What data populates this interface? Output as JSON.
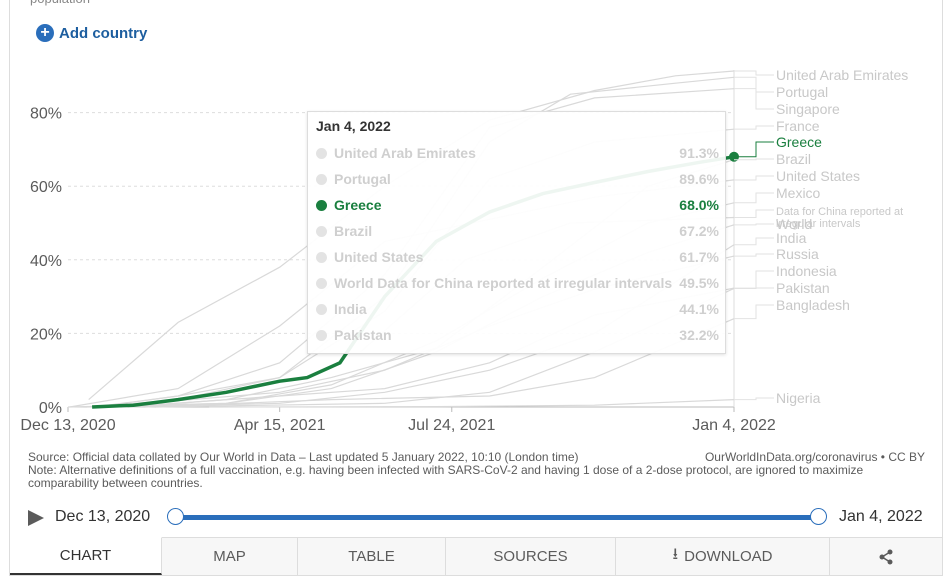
{
  "header": {
    "add_country_label": "Add country",
    "cut_text": "population"
  },
  "chart_data": {
    "type": "line",
    "y_ticks": [
      "0%",
      "20%",
      "40%",
      "60%",
      "80%"
    ],
    "y_tick_values": [
      0,
      20,
      40,
      60,
      80
    ],
    "x_ticks": [
      "Dec 13, 2020",
      "Apr 15, 2021",
      "Jul 24, 2021",
      "Jan 4, 2022"
    ],
    "x_tick_dates": [
      "2020-12-13",
      "2021-04-15",
      "2021-07-24",
      "2022-01-04"
    ],
    "ylim": [
      0,
      92
    ],
    "xlim": [
      "2020-12-13",
      "2022-01-04"
    ],
    "grid": "horizontal dashed",
    "highlight_series": "Greece",
    "highlight_color": "#1a7f3f",
    "muted_color": "#d9d9d9",
    "label_color": "#c8c8c8",
    "series": [
      {
        "name": "United Arab Emirates",
        "end_label": "United Arab Emirates",
        "points": [
          [
            "2020-12-25",
            2
          ],
          [
            "2021-02-15",
            23
          ],
          [
            "2021-04-15",
            38
          ],
          [
            "2021-06-15",
            60
          ],
          [
            "2021-08-15",
            78
          ],
          [
            "2021-10-15",
            86
          ],
          [
            "2021-12-01",
            90
          ],
          [
            "2022-01-04",
            91.3
          ]
        ]
      },
      {
        "name": "Portugal",
        "end_label": "Portugal",
        "points": [
          [
            "2020-12-28",
            0
          ],
          [
            "2021-02-15",
            3
          ],
          [
            "2021-04-15",
            8
          ],
          [
            "2021-06-15",
            30
          ],
          [
            "2021-08-15",
            72
          ],
          [
            "2021-10-01",
            85
          ],
          [
            "2021-12-01",
            88
          ],
          [
            "2022-01-04",
            89.6
          ]
        ]
      },
      {
        "name": "Singapore",
        "end_label": "Singapore",
        "points": [
          [
            "2020-12-30",
            0
          ],
          [
            "2021-02-15",
            3
          ],
          [
            "2021-04-15",
            12
          ],
          [
            "2021-06-15",
            36
          ],
          [
            "2021-08-15",
            76
          ],
          [
            "2021-10-15",
            84
          ],
          [
            "2022-01-04",
            86.5
          ]
        ]
      },
      {
        "name": "France",
        "end_label": "France",
        "points": [
          [
            "2020-12-28",
            0
          ],
          [
            "2021-02-15",
            2
          ],
          [
            "2021-04-15",
            8
          ],
          [
            "2021-06-15",
            26
          ],
          [
            "2021-08-15",
            62
          ],
          [
            "2021-10-15",
            72
          ],
          [
            "2022-01-04",
            75.5
          ]
        ]
      },
      {
        "name": "Greece",
        "end_label": "Greece",
        "points": [
          [
            "2020-12-27",
            0
          ],
          [
            "2021-01-20",
            0.5
          ],
          [
            "2021-02-15",
            2
          ],
          [
            "2021-03-15",
            4
          ],
          [
            "2021-04-15",
            7
          ],
          [
            "2021-05-01",
            8
          ],
          [
            "2021-05-20",
            12
          ],
          [
            "2021-06-15",
            30
          ],
          [
            "2021-07-15",
            45
          ],
          [
            "2021-08-15",
            53
          ],
          [
            "2021-09-15",
            58
          ],
          [
            "2021-10-15",
            61
          ],
          [
            "2021-11-15",
            64
          ],
          [
            "2021-12-15",
            66.5
          ],
          [
            "2022-01-04",
            68.0
          ]
        ]
      },
      {
        "name": "Brazil",
        "end_label": "Brazil",
        "points": [
          [
            "2021-01-17",
            0
          ],
          [
            "2021-03-15",
            2
          ],
          [
            "2021-05-15",
            8
          ],
          [
            "2021-07-15",
            16
          ],
          [
            "2021-09-15",
            38
          ],
          [
            "2021-11-15",
            60
          ],
          [
            "2022-01-04",
            67.2
          ]
        ]
      },
      {
        "name": "United States",
        "end_label": "United States",
        "points": [
          [
            "2020-12-14",
            0
          ],
          [
            "2021-02-15",
            5
          ],
          [
            "2021-04-15",
            22
          ],
          [
            "2021-06-15",
            45
          ],
          [
            "2021-08-15",
            51
          ],
          [
            "2021-10-15",
            57
          ],
          [
            "2022-01-04",
            61.7
          ]
        ]
      },
      {
        "name": "Mexico",
        "end_label": "Mexico",
        "points": [
          [
            "2020-12-24",
            0
          ],
          [
            "2021-03-15",
            1
          ],
          [
            "2021-05-15",
            6
          ],
          [
            "2021-07-15",
            18
          ],
          [
            "2021-09-15",
            35
          ],
          [
            "2021-11-15",
            50
          ],
          [
            "2022-01-04",
            55.5
          ]
        ]
      },
      {
        "name": "World",
        "end_label": "World",
        "points": [
          [
            "2020-12-13",
            0
          ],
          [
            "2021-03-15",
            1
          ],
          [
            "2021-05-15",
            5
          ],
          [
            "2021-07-15",
            15
          ],
          [
            "2021-09-15",
            30
          ],
          [
            "2021-11-15",
            42
          ],
          [
            "2022-01-04",
            49.5
          ]
        ]
      },
      {
        "name": "Data for China reported at irregular intervals",
        "end_label": "Data for China reported at irregular intervals",
        "points": [
          [
            "2021-06-01",
            15
          ],
          [
            "2021-08-01",
            40
          ],
          [
            "2021-10-01",
            50
          ],
          [
            "2022-01-04",
            51.5
          ]
        ]
      },
      {
        "name": "Russia",
        "end_label": "Russia",
        "points": [
          [
            "2021-01-01",
            0
          ],
          [
            "2021-04-15",
            4
          ],
          [
            "2021-06-15",
            10
          ],
          [
            "2021-08-15",
            22
          ],
          [
            "2021-10-15",
            32
          ],
          [
            "2022-01-04",
            41
          ]
        ]
      },
      {
        "name": "India",
        "end_label": "India",
        "points": [
          [
            "2021-01-16",
            0
          ],
          [
            "2021-04-15",
            1
          ],
          [
            "2021-06-15",
            4
          ],
          [
            "2021-08-15",
            10
          ],
          [
            "2021-10-15",
            20
          ],
          [
            "2022-01-04",
            44.1
          ]
        ]
      },
      {
        "name": "Indonesia",
        "end_label": "Indonesia",
        "points": [
          [
            "2021-01-13",
            0
          ],
          [
            "2021-04-15",
            3
          ],
          [
            "2021-06-15",
            5
          ],
          [
            "2021-08-15",
            12
          ],
          [
            "2021-10-15",
            25
          ],
          [
            "2022-01-04",
            32.3
          ]
        ]
      },
      {
        "name": "Pakistan",
        "end_label": "Pakistan",
        "points": [
          [
            "2021-02-02",
            0
          ],
          [
            "2021-06-15",
            1
          ],
          [
            "2021-08-15",
            4
          ],
          [
            "2021-10-15",
            15
          ],
          [
            "2022-01-04",
            32.2
          ]
        ]
      },
      {
        "name": "Bangladesh",
        "end_label": "Bangladesh",
        "points": [
          [
            "2021-01-27",
            0
          ],
          [
            "2021-05-15",
            2
          ],
          [
            "2021-08-15",
            3
          ],
          [
            "2021-10-15",
            8
          ],
          [
            "2022-01-04",
            24
          ]
        ]
      },
      {
        "name": "Nigeria",
        "end_label": "Nigeria",
        "points": [
          [
            "2021-03-05",
            0
          ],
          [
            "2021-07-15",
            0.1
          ],
          [
            "2021-10-15",
            0.5
          ],
          [
            "2022-01-04",
            2
          ]
        ]
      }
    ],
    "tooltip": {
      "date": "Jan 4, 2022",
      "rows": [
        {
          "name": "United Arab Emirates",
          "value": "91.3%"
        },
        {
          "name": "Portugal",
          "value": "89.6%"
        },
        {
          "name": "Greece",
          "value": "68.0%",
          "highlight": true
        },
        {
          "name": "Brazil",
          "value": "67.2%"
        },
        {
          "name": "United States",
          "value": "61.7%"
        },
        {
          "name": "World Data for China reported at irregular intervals",
          "value": "49.5%"
        },
        {
          "name": "India",
          "value": "44.1%"
        },
        {
          "name": "Pakistan",
          "value": "32.2%"
        }
      ]
    }
  },
  "footer": {
    "source": "Source: Official data collated by Our World in Data – Last updated 5 January 2022, 10:10 (London time)",
    "credit": "OurWorldInData.org/coronavirus • CC BY",
    "note": "Note: Alternative definitions of a full vaccination, e.g. having been infected with SARS-CoV-2 and having 1 dose of a 2-dose protocol, are ignored to maximize comparability between countries."
  },
  "timeline": {
    "start_label": "Dec 13, 2020",
    "end_label": "Jan 4, 2022"
  },
  "tabs": [
    {
      "label": "CHART",
      "icon": "",
      "active": true
    },
    {
      "label": "MAP",
      "icon": ""
    },
    {
      "label": "TABLE",
      "icon": ""
    },
    {
      "label": "SOURCES",
      "icon": ""
    },
    {
      "label": "DOWNLOAD",
      "icon": "download-icon"
    },
    {
      "label": "",
      "icon": "share-icon"
    }
  ]
}
